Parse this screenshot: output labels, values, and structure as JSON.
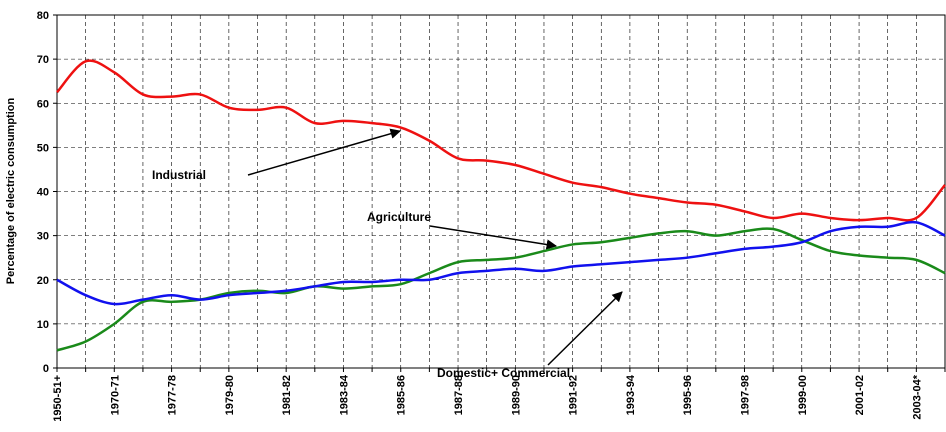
{
  "chart_data": {
    "type": "line",
    "y_label": "Percentage of electric consumption",
    "categories": [
      "1950-51+",
      null,
      "1970-71",
      null,
      "1977-78",
      null,
      "1979-80",
      null,
      "1981-82",
      null,
      "1983-84",
      null,
      "1985-86",
      null,
      "1987-88",
      null,
      "1989-90",
      null,
      "1991-92",
      null,
      "1993-94",
      null,
      "1995-96",
      null,
      "1997-98",
      null,
      "1999-00",
      null,
      "2001-02",
      null,
      "2003-04*",
      null
    ],
    "series": [
      {
        "name": "Industrial",
        "color": "#ee1111",
        "values": [
          62.5,
          69.5,
          67,
          62,
          61.5,
          62,
          59,
          58.5,
          59,
          55.5,
          56,
          55.5,
          54.5,
          51.5,
          47.5,
          47,
          46,
          44,
          42,
          41,
          39.5,
          38.5,
          37.5,
          37,
          35.5,
          34,
          35,
          34,
          33.5,
          34,
          34,
          41.5
        ]
      },
      {
        "name": "Agriculture",
        "color": "#1a8a1a",
        "values": [
          4,
          6,
          10,
          15,
          15,
          15.5,
          17,
          17.5,
          17,
          18.5,
          18,
          18.5,
          19,
          21.5,
          24,
          24.5,
          25,
          26.5,
          28,
          28.5,
          29.5,
          30.5,
          31,
          30,
          31,
          31.5,
          29,
          26.5,
          25.5,
          25,
          24.5,
          21.5
        ]
      },
      {
        "name": "Domestic+ Commercial",
        "color": "#1111ee",
        "values": [
          20,
          16.5,
          14.5,
          15.5,
          16.5,
          15.5,
          16.5,
          17,
          17.5,
          18.5,
          19.5,
          19.5,
          20,
          20,
          21.5,
          22,
          22.5,
          22,
          23,
          23.5,
          24,
          24.5,
          25,
          26,
          27,
          27.5,
          28.5,
          31,
          32,
          32,
          33,
          30
        ]
      }
    ],
    "ylim": [
      0,
      80
    ],
    "yticks": [
      0,
      10,
      20,
      30,
      40,
      50,
      60,
      70,
      80
    ],
    "grid": true
  }
}
